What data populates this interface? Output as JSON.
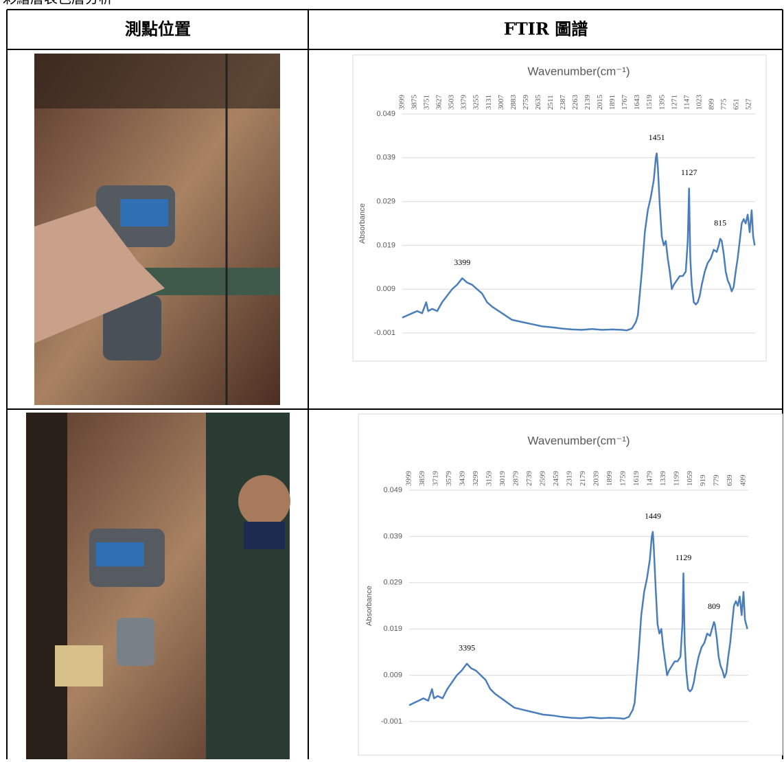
{
  "heading": "彩繪層表色層分析",
  "table": {
    "header": [
      "測點位置",
      "FTIR 圖譜"
    ],
    "rows": [
      {
        "chart": {
          "type": "line",
          "title": "Wavenumber(cm⁻¹)",
          "y_label": "Absorbance",
          "color": "#4a7ebb",
          "grid": true,
          "xlim": [
            3999,
            465
          ],
          "ylim": [
            -0.001,
            0.049
          ],
          "xticks": [
            3999,
            3875,
            3751,
            3627,
            3503,
            3379,
            3255,
            3131,
            3007,
            2883,
            2759,
            2635,
            2511,
            2387,
            2263,
            2139,
            2015,
            1891,
            1767,
            1643,
            1519,
            1395,
            1271,
            1147,
            1023,
            899,
            775,
            651,
            527
          ],
          "yticks": [
            0.049,
            0.039,
            0.029,
            0.019,
            0.009,
            -0.001
          ],
          "peaks": [
            3399,
            1451,
            1127,
            815
          ],
          "x": [
            3999,
            3950,
            3900,
            3850,
            3800,
            3760,
            3740,
            3700,
            3650,
            3600,
            3550,
            3500,
            3450,
            3399,
            3350,
            3300,
            3250,
            3200,
            3150,
            3100,
            3000,
            2900,
            2800,
            2700,
            2600,
            2500,
            2400,
            2300,
            2200,
            2100,
            2000,
            1900,
            1800,
            1750,
            1700,
            1660,
            1640,
            1620,
            1600,
            1570,
            1540,
            1510,
            1480,
            1460,
            1451,
            1440,
            1420,
            1400,
            1380,
            1360,
            1340,
            1320,
            1300,
            1280,
            1250,
            1220,
            1190,
            1160,
            1140,
            1127,
            1115,
            1100,
            1080,
            1060,
            1040,
            1020,
            1000,
            970,
            940,
            910,
            880,
            850,
            830,
            815,
            800,
            780,
            760,
            740,
            720,
            700,
            680,
            660,
            640,
            620,
            600,
            580,
            560,
            540,
            520,
            500,
            485,
            470
          ],
          "values": [
            0.0025,
            0.003,
            0.0035,
            0.004,
            0.0035,
            0.006,
            0.004,
            0.0045,
            0.004,
            0.006,
            0.0075,
            0.009,
            0.01,
            0.0115,
            0.0105,
            0.01,
            0.009,
            0.008,
            0.006,
            0.005,
            0.0035,
            0.002,
            0.0015,
            0.001,
            0.0005,
            0.0003,
            0.0,
            -0.0002,
            -0.0003,
            -0.0001,
            -0.0003,
            -0.0002,
            -0.0003,
            -0.0004,
            0,
            0.0015,
            0.003,
            0.008,
            0.013,
            0.022,
            0.027,
            0.03,
            0.034,
            0.039,
            0.04,
            0.037,
            0.028,
            0.021,
            0.019,
            0.02,
            0.016,
            0.013,
            0.009,
            0.01,
            0.011,
            0.012,
            0.012,
            0.013,
            0.02,
            0.032,
            0.016,
            0.01,
            0.006,
            0.0055,
            0.006,
            0.0075,
            0.01,
            0.013,
            0.015,
            0.016,
            0.018,
            0.0175,
            0.019,
            0.0205,
            0.02,
            0.017,
            0.013,
            0.011,
            0.01,
            0.0085,
            0.0095,
            0.013,
            0.016,
            0.02,
            0.024,
            0.025,
            0.024,
            0.026,
            0.022,
            0.027,
            0.021,
            0.019
          ]
        }
      },
      {
        "chart": {
          "type": "line",
          "title": "Wavenumber(cm⁻¹)",
          "y_label": "Absorbance",
          "color": "#4a7ebb",
          "grid": true,
          "xlim": [
            3999,
            450
          ],
          "ylim": [
            -0.001,
            0.049
          ],
          "xticks": [
            3999,
            3859,
            3719,
            3579,
            3439,
            3299,
            3159,
            3019,
            2879,
            2739,
            2599,
            2459,
            2319,
            2179,
            2039,
            1899,
            1759,
            1619,
            1479,
            1339,
            1199,
            1059,
            919,
            779,
            639,
            499
          ],
          "yticks": [
            0.049,
            0.039,
            0.029,
            0.019,
            0.009,
            -0.001
          ],
          "peaks": [
            3395,
            1449,
            1129,
            809
          ],
          "x": [
            3999,
            3950,
            3900,
            3850,
            3800,
            3760,
            3740,
            3700,
            3650,
            3600,
            3550,
            3500,
            3450,
            3395,
            3350,
            3300,
            3250,
            3200,
            3150,
            3100,
            3000,
            2900,
            2800,
            2700,
            2600,
            2500,
            2400,
            2300,
            2200,
            2100,
            2000,
            1900,
            1800,
            1750,
            1700,
            1660,
            1640,
            1620,
            1600,
            1570,
            1540,
            1510,
            1480,
            1460,
            1449,
            1440,
            1420,
            1400,
            1380,
            1360,
            1340,
            1320,
            1300,
            1280,
            1250,
            1220,
            1190,
            1160,
            1140,
            1129,
            1115,
            1100,
            1080,
            1060,
            1040,
            1020,
            1000,
            970,
            940,
            910,
            880,
            850,
            830,
            809,
            800,
            780,
            760,
            740,
            720,
            700,
            680,
            660,
            640,
            620,
            600,
            580,
            560,
            540,
            520,
            500,
            485,
            460
          ],
          "values": [
            0.0025,
            0.003,
            0.0035,
            0.004,
            0.0035,
            0.006,
            0.004,
            0.0045,
            0.004,
            0.006,
            0.0075,
            0.009,
            0.01,
            0.0115,
            0.0105,
            0.01,
            0.009,
            0.008,
            0.006,
            0.005,
            0.0035,
            0.002,
            0.0015,
            0.001,
            0.0005,
            0.0003,
            0.0,
            -0.0002,
            -0.0003,
            -0.0001,
            -0.0003,
            -0.0002,
            -0.0003,
            -0.0004,
            0,
            0.0015,
            0.003,
            0.008,
            0.013,
            0.022,
            0.027,
            0.03,
            0.034,
            0.039,
            0.04,
            0.037,
            0.028,
            0.02,
            0.018,
            0.019,
            0.015,
            0.012,
            0.009,
            0.01,
            0.011,
            0.012,
            0.012,
            0.013,
            0.02,
            0.031,
            0.016,
            0.01,
            0.006,
            0.0055,
            0.006,
            0.0075,
            0.01,
            0.013,
            0.015,
            0.016,
            0.018,
            0.0175,
            0.019,
            0.0205,
            0.02,
            0.017,
            0.013,
            0.011,
            0.01,
            0.0085,
            0.0095,
            0.013,
            0.016,
            0.02,
            0.024,
            0.025,
            0.024,
            0.026,
            0.022,
            0.027,
            0.021,
            0.019
          ]
        }
      }
    ]
  }
}
